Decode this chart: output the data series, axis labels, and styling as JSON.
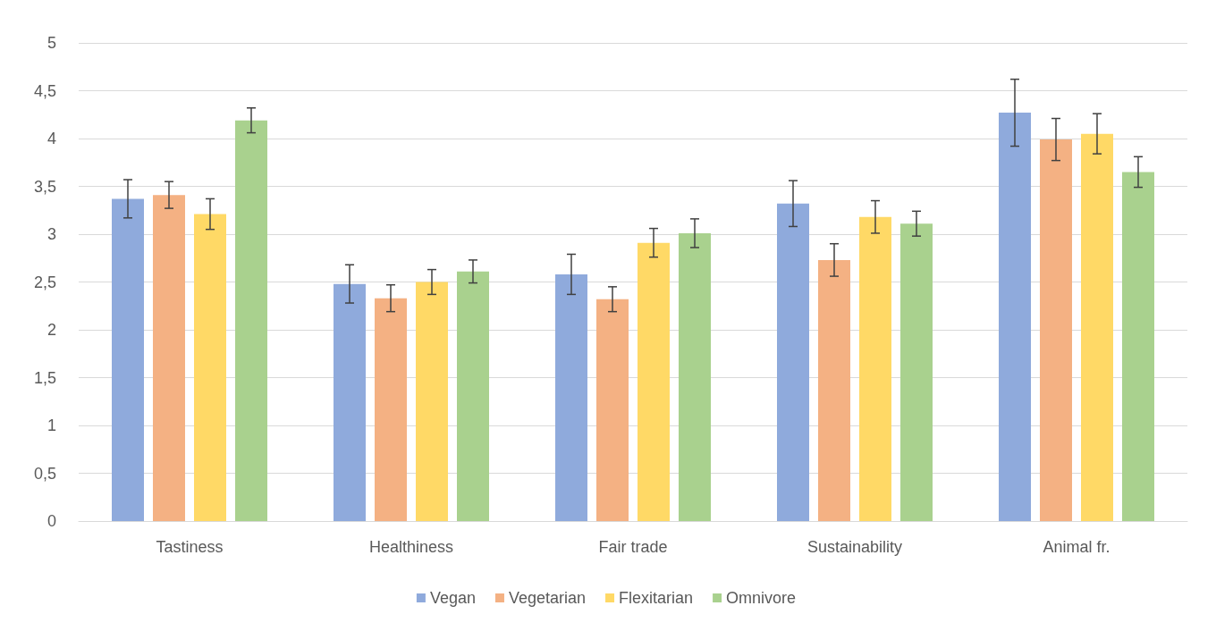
{
  "chart_data": {
    "type": "bar",
    "categories": [
      "Tastiness",
      "Healthiness",
      "Fair trade",
      "Sustainability",
      "Animal fr."
    ],
    "series": [
      {
        "name": "Vegan",
        "color": "#8faadc",
        "values": [
          3.37,
          2.48,
          2.58,
          3.32,
          4.27
        ],
        "errors": [
          0.2,
          0.2,
          0.21,
          0.24,
          0.35
        ]
      },
      {
        "name": "Vegetarian",
        "color": "#f4b183",
        "values": [
          3.41,
          2.33,
          2.32,
          2.73,
          3.99
        ],
        "errors": [
          0.14,
          0.14,
          0.13,
          0.17,
          0.22
        ]
      },
      {
        "name": "Flexitarian",
        "color": "#ffd966",
        "values": [
          3.21,
          2.5,
          2.91,
          3.18,
          4.05
        ],
        "errors": [
          0.16,
          0.13,
          0.15,
          0.17,
          0.21
        ]
      },
      {
        "name": "Omnivore",
        "color": "#a9d18e",
        "values": [
          4.19,
          2.61,
          3.01,
          3.11,
          3.65
        ],
        "errors": [
          0.13,
          0.12,
          0.15,
          0.13,
          0.16
        ]
      }
    ],
    "ylim": [
      0,
      5
    ],
    "yticks": [
      0,
      {
        "value": 0.5,
        "label": "0,5"
      },
      1,
      {
        "value": 1.5,
        "label": "1,5"
      },
      2,
      {
        "value": 2.5,
        "label": "2,5"
      },
      3,
      {
        "value": 3.5,
        "label": "3,5"
      },
      4,
      {
        "value": 4.5,
        "label": "4,5"
      },
      5
    ],
    "grid": "y",
    "legend": "bottom"
  }
}
